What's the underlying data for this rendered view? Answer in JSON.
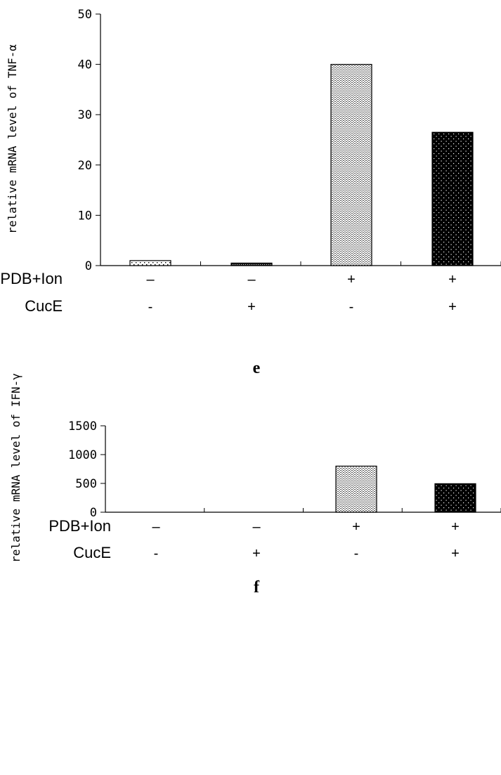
{
  "chart_data": [
    {
      "type": "bar",
      "panel_label": "e",
      "ylabel": "relative mRNA level of TNF-α",
      "ylim": [
        0,
        50
      ],
      "yticks": [
        "0",
        "10",
        "20",
        "30",
        "40",
        "50"
      ],
      "conditions": [
        {
          "label": "PDB+Ion",
          "values": [
            "–",
            "–",
            "+",
            "+"
          ]
        },
        {
          "label": "CucE",
          "values": [
            "-",
            "+",
            "-",
            "+"
          ]
        }
      ],
      "values": [
        1.0,
        0.5,
        40.0,
        26.5
      ],
      "bar_styles": [
        "sparse-dots",
        "dense-dark",
        "fine-hatch",
        "black-dots"
      ]
    },
    {
      "type": "bar",
      "panel_label": "f",
      "ylabel": "relative mRNA level of  IFN-γ",
      "ylim": [
        0,
        1500
      ],
      "yticks": [
        "0",
        "500",
        "1000",
        "1500"
      ],
      "conditions": [
        {
          "label": "PDB+Ion",
          "values": [
            "–",
            "–",
            "+",
            "+"
          ]
        },
        {
          "label": "CucE",
          "values": [
            "-",
            "+",
            "-",
            "+"
          ]
        }
      ],
      "values": [
        0,
        0,
        800,
        495
      ],
      "bar_styles": [
        "sparse-dots",
        "dense-dark",
        "fine-hatch",
        "black-dots"
      ]
    }
  ]
}
